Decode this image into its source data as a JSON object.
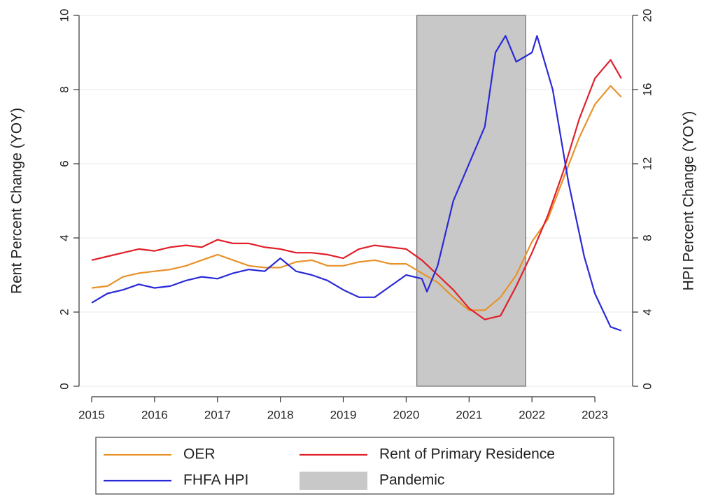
{
  "chart_data": {
    "type": "line",
    "y_label": "Rent Percent Change (YOY)",
    "y2_label": "HPI Percent Change (YOY)",
    "xlim": [
      2014.8,
      2023.6
    ],
    "xticks": [
      2015,
      2016,
      2017,
      2018,
      2019,
      2020,
      2021,
      2022,
      2023
    ],
    "ylim": [
      0,
      10
    ],
    "yticks": [
      0,
      2,
      4,
      6,
      8,
      10
    ],
    "y2lim": [
      0,
      20
    ],
    "y2ticks": [
      0,
      4,
      8,
      12,
      16,
      20
    ],
    "grid": true,
    "series": [
      {
        "name": "OER",
        "color": "#e8922b",
        "x": [
          2015.0,
          2015.25,
          2015.5,
          2015.75,
          2016.0,
          2016.25,
          2016.5,
          2016.75,
          2017.0,
          2017.25,
          2017.5,
          2017.75,
          2018.0,
          2018.25,
          2018.5,
          2018.75,
          2019.0,
          2019.25,
          2019.5,
          2019.75,
          2020.0,
          2020.25,
          2020.5,
          2020.75,
          2021.0,
          2021.25,
          2021.5,
          2021.75,
          2022.0,
          2022.25,
          2022.5,
          2022.75,
          2023.0,
          2023.25,
          2023.42
        ],
        "values": [
          2.65,
          2.7,
          2.95,
          3.05,
          3.1,
          3.15,
          3.25,
          3.4,
          3.55,
          3.4,
          3.25,
          3.2,
          3.2,
          3.35,
          3.4,
          3.25,
          3.25,
          3.35,
          3.4,
          3.3,
          3.3,
          3.05,
          2.8,
          2.4,
          2.05,
          2.05,
          2.4,
          3.0,
          3.9,
          4.5,
          5.6,
          6.7,
          7.6,
          8.1,
          7.8
        ]
      },
      {
        "name": "Rent of Primary Residence",
        "color": "#e0202a",
        "x": [
          2015.0,
          2015.25,
          2015.5,
          2015.75,
          2016.0,
          2016.25,
          2016.5,
          2016.75,
          2017.0,
          2017.25,
          2017.5,
          2017.75,
          2018.0,
          2018.25,
          2018.5,
          2018.75,
          2019.0,
          2019.25,
          2019.5,
          2019.75,
          2020.0,
          2020.25,
          2020.5,
          2020.75,
          2021.0,
          2021.25,
          2021.5,
          2021.75,
          2022.0,
          2022.25,
          2022.5,
          2022.75,
          2023.0,
          2023.25,
          2023.42
        ],
        "values": [
          3.4,
          3.5,
          3.6,
          3.7,
          3.65,
          3.75,
          3.8,
          3.75,
          3.95,
          3.85,
          3.85,
          3.75,
          3.7,
          3.6,
          3.6,
          3.55,
          3.45,
          3.7,
          3.8,
          3.75,
          3.7,
          3.4,
          3.0,
          2.6,
          2.1,
          1.8,
          1.9,
          2.7,
          3.6,
          4.6,
          5.8,
          7.2,
          8.3,
          8.8,
          8.3
        ]
      },
      {
        "name": "FHFA HPI",
        "color": "#2a2ad8",
        "axis": "y2",
        "x": [
          2015.0,
          2015.25,
          2015.5,
          2015.75,
          2016.0,
          2016.25,
          2016.5,
          2016.75,
          2017.0,
          2017.25,
          2017.5,
          2017.75,
          2018.0,
          2018.25,
          2018.5,
          2018.75,
          2019.0,
          2019.25,
          2019.5,
          2019.75,
          2020.0,
          2020.25,
          2020.33,
          2020.5,
          2020.75,
          2021.0,
          2021.25,
          2021.42,
          2021.58,
          2021.75,
          2022.0,
          2022.08,
          2022.33,
          2022.58,
          2022.83,
          2023.0,
          2023.25,
          2023.42
        ],
        "values": [
          4.5,
          5.0,
          5.2,
          5.5,
          5.3,
          5.4,
          5.7,
          5.9,
          5.8,
          6.1,
          6.3,
          6.2,
          6.9,
          6.2,
          6.0,
          5.7,
          5.2,
          4.8,
          4.8,
          5.4,
          6.0,
          5.8,
          5.1,
          6.5,
          10.0,
          12.0,
          14.0,
          18.0,
          18.9,
          17.5,
          18.0,
          18.9,
          16.0,
          11.0,
          7.0,
          5.0,
          3.2,
          3.0
        ]
      }
    ],
    "shaded_regions": [
      {
        "name": "Pandemic",
        "color": "#c8c8c8",
        "x": [
          2020.17,
          2021.9
        ]
      }
    ]
  }
}
